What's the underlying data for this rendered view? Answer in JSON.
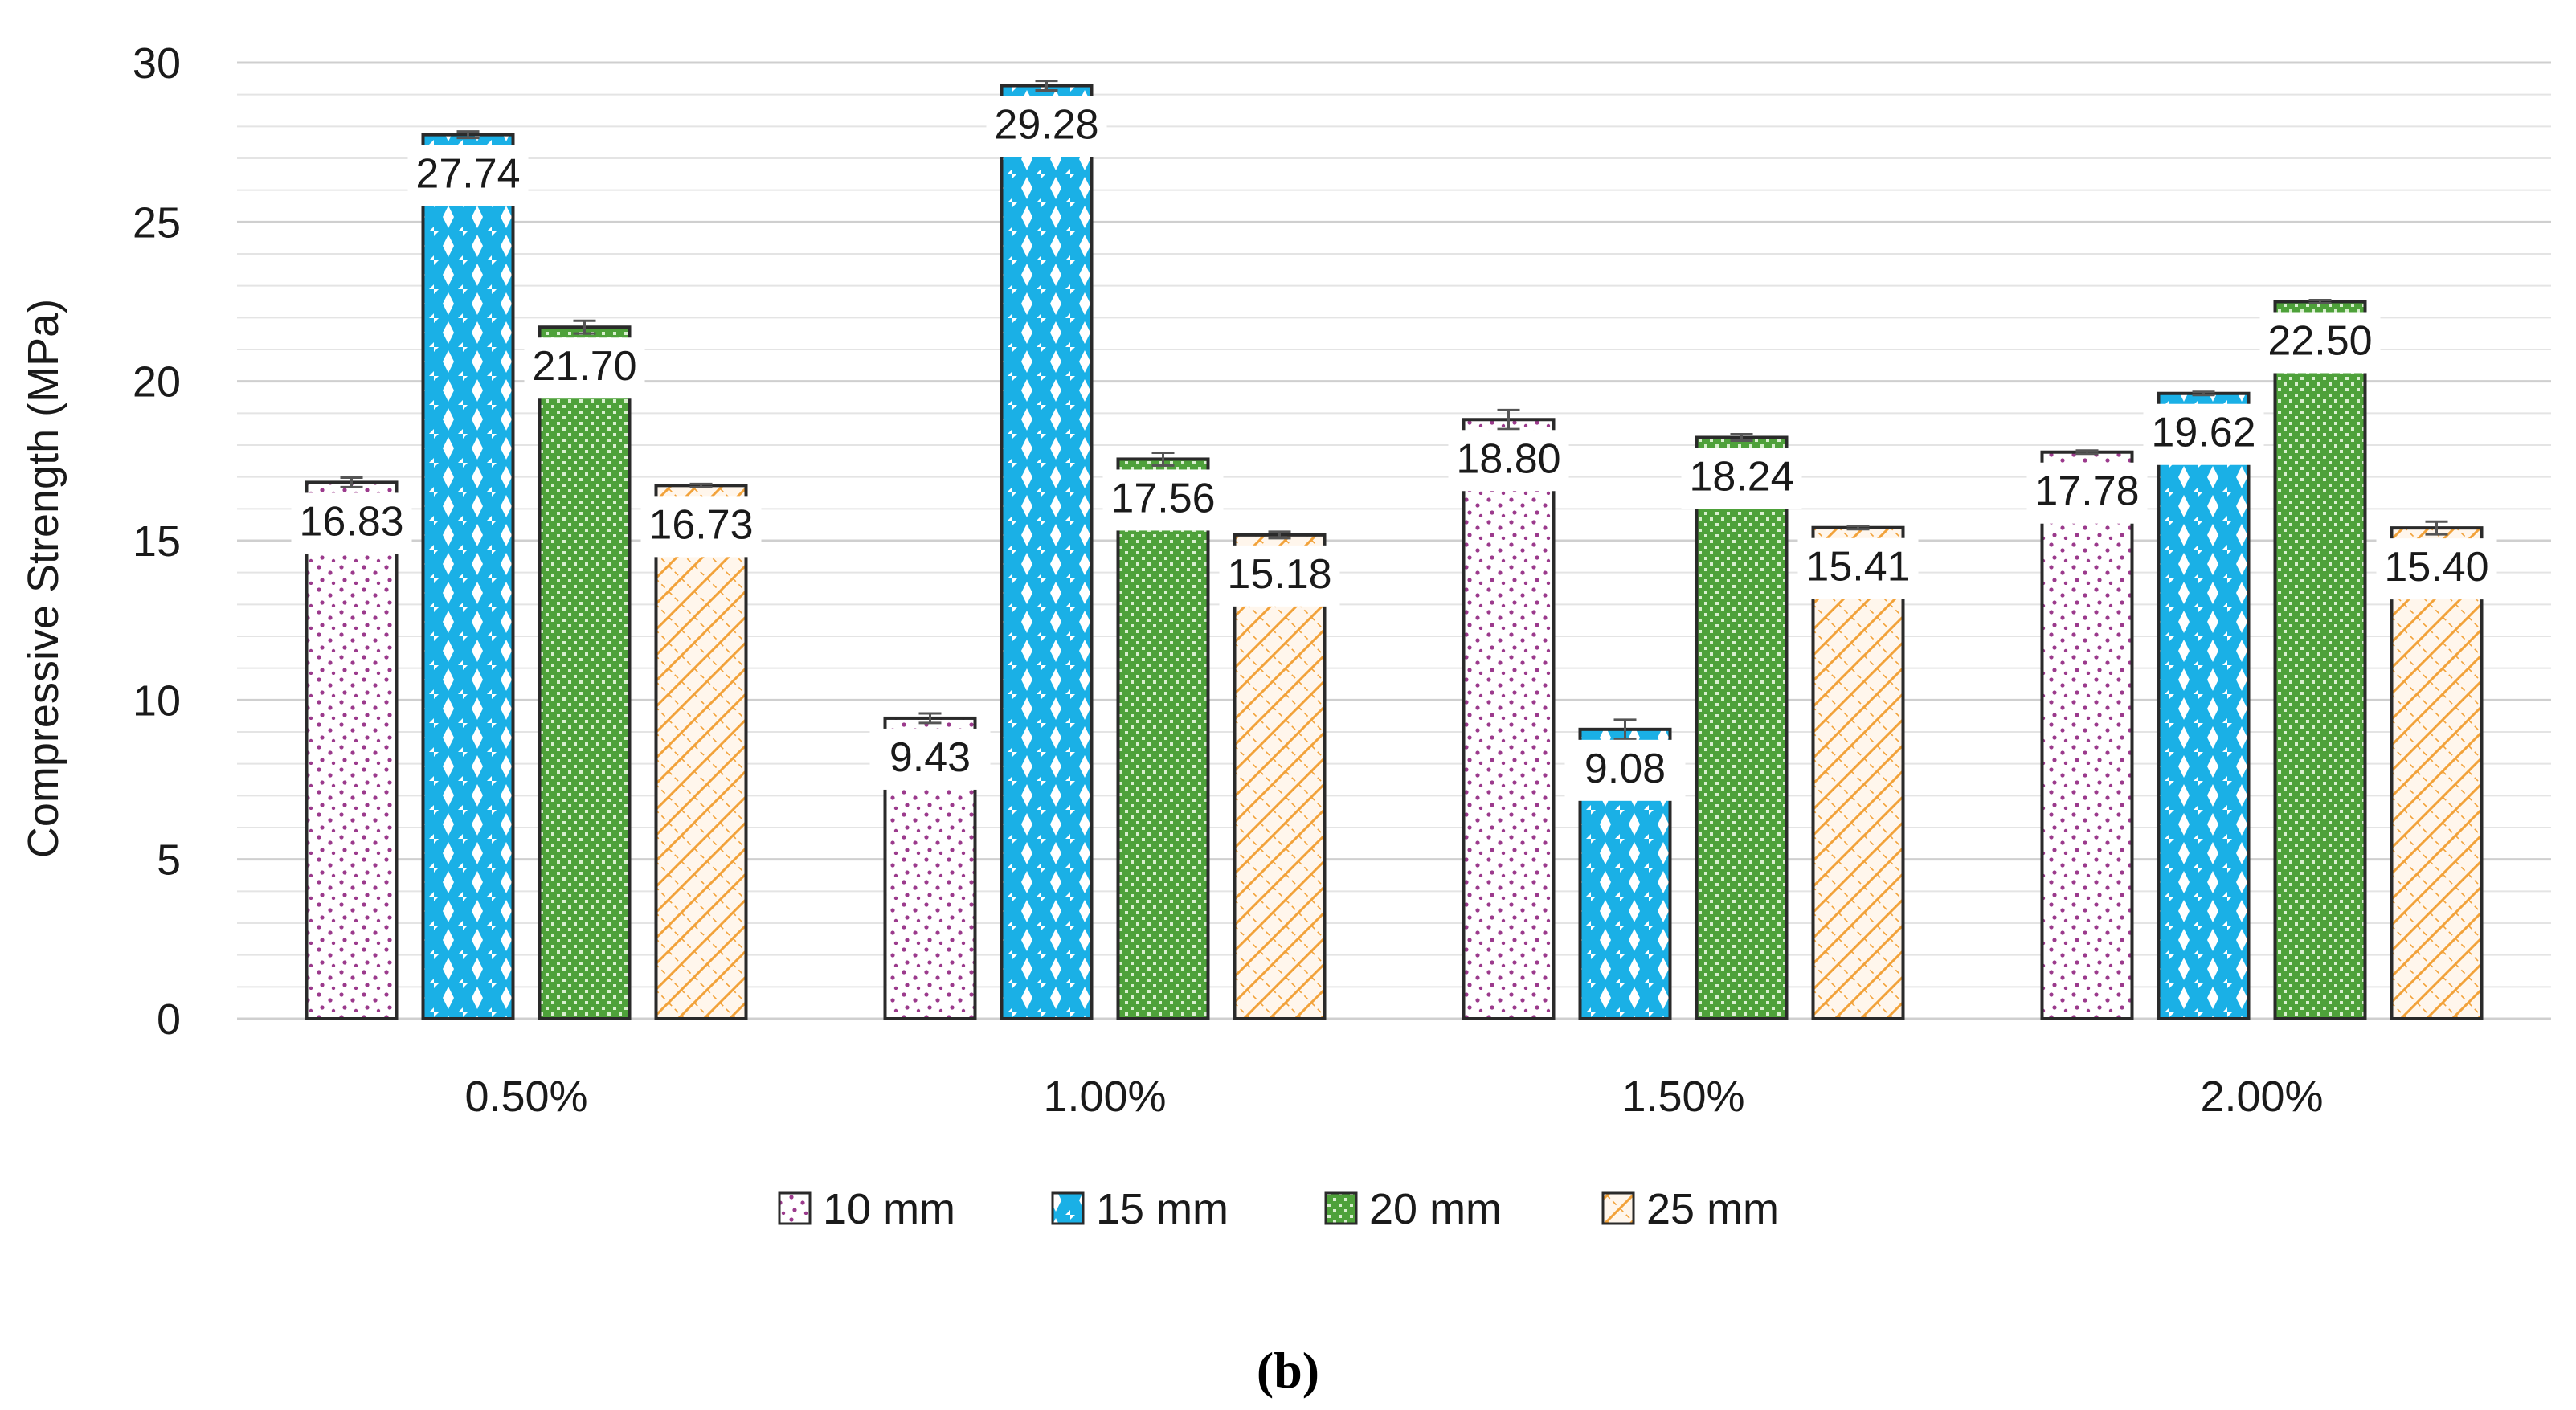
{
  "chart_data": {
    "type": "bar",
    "ylabel": "Compressive Strength (MPa)",
    "xlabel": "",
    "ylim": [
      0,
      30
    ],
    "yticks": [
      0,
      5,
      10,
      15,
      20,
      25,
      30
    ],
    "minor_grid_step": 1,
    "categories": [
      "0.50%",
      "1.00%",
      "1.50%",
      "2.00%"
    ],
    "series": [
      {
        "name": "10 mm",
        "values": [
          16.83,
          9.43,
          18.8,
          17.78
        ],
        "labels": [
          "16.83",
          "9.43",
          "18.80",
          "17.78"
        ],
        "error": [
          0.15,
          0.15,
          0.3,
          0.05
        ],
        "color": "#9b3a8c",
        "pattern": "dots"
      },
      {
        "name": "15 mm",
        "values": [
          27.74,
          29.28,
          9.08,
          19.62
        ],
        "labels": [
          "27.74",
          "29.28",
          "9.08",
          "19.62"
        ],
        "error": [
          0.1,
          0.15,
          0.3,
          0.05
        ],
        "color": "#1ab0e6",
        "pattern": "diamonds"
      },
      {
        "name": "20 mm",
        "values": [
          21.7,
          17.56,
          18.24,
          22.5
        ],
        "labels": [
          "21.70",
          "17.56",
          "18.24",
          "22.50"
        ],
        "error": [
          0.2,
          0.2,
          0.1,
          0.05
        ],
        "color": "#4ea13a",
        "pattern": "checker"
      },
      {
        "name": "25 mm",
        "values": [
          16.73,
          15.18,
          15.41,
          15.4
        ],
        "labels": [
          "16.73",
          "15.18",
          "15.41",
          "15.40"
        ],
        "error": [
          0.05,
          0.1,
          0.05,
          0.2
        ],
        "color": "#f2a23a",
        "pattern": "weave"
      }
    ],
    "legend_position": "bottom",
    "grid": true
  },
  "panel_label": {
    "open": "(",
    "letter": "b",
    "close": ")"
  }
}
